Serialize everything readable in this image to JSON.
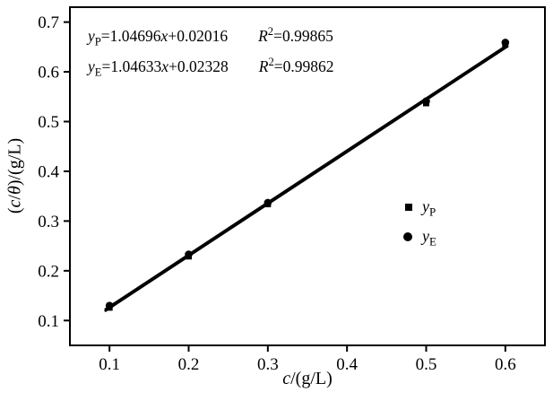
{
  "chart_data": {
    "type": "scatter",
    "title": "",
    "xlabel": "c/(g/L)",
    "ylabel": "(c/θ)/(g/L)",
    "xlim": [
      0.05,
      0.65
    ],
    "ylim": [
      0.05,
      0.73
    ],
    "x_ticks": [
      0.1,
      0.2,
      0.3,
      0.4,
      0.5,
      0.6
    ],
    "y_ticks": [
      0.1,
      0.2,
      0.3,
      0.4,
      0.5,
      0.6,
      0.7
    ],
    "grid": false,
    "legend_position": "inside-right",
    "color": "#000000",
    "x": [
      0.1,
      0.2,
      0.3,
      0.5,
      0.6
    ],
    "series": [
      {
        "name": "yP",
        "marker": "square",
        "values": [
          0.126,
          0.229,
          0.334,
          0.537,
          0.655
        ]
      },
      {
        "name": "yE",
        "marker": "circle",
        "values": [
          0.13,
          0.233,
          0.337,
          0.541,
          0.659
        ]
      }
    ],
    "fit_lines": [
      {
        "name": "yP",
        "slope": 1.04696,
        "intercept": 0.02016,
        "r2": 0.99865
      },
      {
        "name": "yE",
        "slope": 1.04633,
        "intercept": 0.02328,
        "r2": 0.99862
      }
    ],
    "line_x_range": [
      0.095,
      0.602
    ]
  },
  "annotations": {
    "eq1": {
      "yvar": "y",
      "ysub": "P",
      "lhs": "=1.04696",
      "xvar": "x",
      "rhs": "+0.02016",
      "r": "R",
      "rsup": "2",
      "rval": "=0.99865"
    },
    "eq2": {
      "yvar": "y",
      "ysub": "E",
      "lhs": "=1.04633",
      "xvar": "x",
      "rhs": "+0.02328",
      "r": "R",
      "rsup": "2",
      "rval": "=0.99862"
    }
  },
  "legend": {
    "item1": {
      "var": "y",
      "sub": "P"
    },
    "item2": {
      "var": "y",
      "sub": "E"
    }
  },
  "axes": {
    "x_parts": {
      "var": "c",
      "rest": "/(g/L)"
    },
    "y_parts": {
      "open": "(",
      "var": "c",
      "slash": "/",
      "theta": "θ",
      "rest": ")/(g/L)"
    }
  }
}
